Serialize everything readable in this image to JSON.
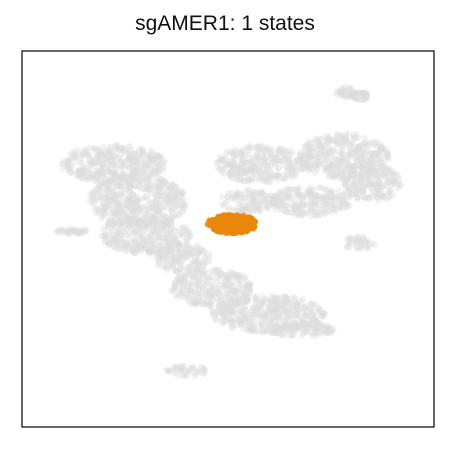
{
  "chart_data": {
    "type": "scatter",
    "title": "sgAMER1: 1 states",
    "xlabel": "",
    "ylabel": "",
    "xlim": [
      0,
      1
    ],
    "ylim": [
      0,
      1
    ],
    "axes_ticks": false,
    "grid": false,
    "colors": {
      "background_cells": "#dcdcdc",
      "highlight": "#e8870b",
      "frame": "#000000"
    },
    "series": [
      {
        "role": "background",
        "blobs": [
          {
            "cx": 0.22,
            "cy": 0.3,
            "rx": 0.13,
            "ry": 0.05
          },
          {
            "cx": 0.28,
            "cy": 0.4,
            "rx": 0.12,
            "ry": 0.07
          },
          {
            "cx": 0.3,
            "cy": 0.49,
            "rx": 0.11,
            "ry": 0.05
          },
          {
            "cx": 0.39,
            "cy": 0.55,
            "rx": 0.07,
            "ry": 0.04
          },
          {
            "cx": 0.46,
            "cy": 0.63,
            "rx": 0.1,
            "ry": 0.05
          },
          {
            "cx": 0.6,
            "cy": 0.7,
            "rx": 0.14,
            "ry": 0.05
          },
          {
            "cx": 0.68,
            "cy": 0.74,
            "rx": 0.08,
            "ry": 0.02
          },
          {
            "cx": 0.58,
            "cy": 0.3,
            "rx": 0.11,
            "ry": 0.05
          },
          {
            "cx": 0.78,
            "cy": 0.28,
            "rx": 0.11,
            "ry": 0.06
          },
          {
            "cx": 0.85,
            "cy": 0.35,
            "rx": 0.07,
            "ry": 0.05
          },
          {
            "cx": 0.7,
            "cy": 0.4,
            "rx": 0.1,
            "ry": 0.04
          },
          {
            "cx": 0.55,
            "cy": 0.4,
            "rx": 0.07,
            "ry": 0.03
          },
          {
            "cx": 0.79,
            "cy": 0.11,
            "rx": 0.03,
            "ry": 0.015
          },
          {
            "cx": 0.82,
            "cy": 0.12,
            "rx": 0.02,
            "ry": 0.012
          },
          {
            "cx": 0.12,
            "cy": 0.48,
            "rx": 0.04,
            "ry": 0.008
          },
          {
            "cx": 0.82,
            "cy": 0.51,
            "rx": 0.04,
            "ry": 0.018
          },
          {
            "cx": 0.4,
            "cy": 0.85,
            "rx": 0.05,
            "ry": 0.015
          }
        ]
      },
      {
        "role": "state-1",
        "color": "#e8870b",
        "blobs": [
          {
            "cx": 0.51,
            "cy": 0.46,
            "rx": 0.06,
            "ry": 0.025
          }
        ]
      }
    ]
  }
}
